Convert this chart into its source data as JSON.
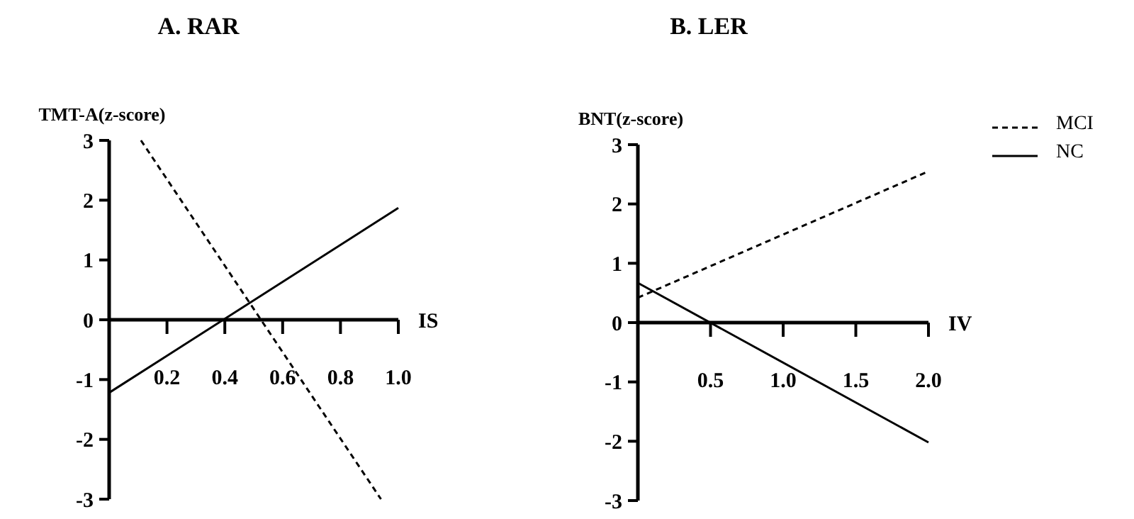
{
  "chart_data": [
    {
      "type": "line",
      "title": "A. RAR",
      "xlabel": "IS",
      "ylabel": "TMT-A(z-score)",
      "xlim": [
        0,
        1.0
      ],
      "xticks": [
        {
          "value": 0.2,
          "label": "0.2"
        },
        {
          "value": 0.4,
          "label": "0.4"
        },
        {
          "value": 0.6,
          "label": "0.6"
        },
        {
          "value": 0.8,
          "label": "0.8"
        },
        {
          "value": 1.0,
          "label": "1.0"
        }
      ],
      "ylim": [
        -3,
        3
      ],
      "yticks": [
        -3,
        -2,
        -1,
        0,
        1,
        2,
        3
      ],
      "grid": false,
      "legend": false,
      "marker": "none",
      "series": [
        {
          "color": "#000000",
          "line_style": "dashed",
          "x": [
            0.11,
            0.94
          ],
          "values": [
            3.0,
            -3.0
          ]
        },
        {
          "color": "#000000",
          "line_style": "solid",
          "x": [
            0,
            1.0
          ],
          "values": [
            -1.22,
            1.87
          ]
        }
      ]
    },
    {
      "type": "line",
      "title": "B. LER",
      "xlabel": "IV",
      "ylabel": "BNT(z-score)",
      "xlim": [
        0,
        2.0
      ],
      "xticks": [
        {
          "value": 0.5,
          "label": "0.5"
        },
        {
          "value": 1.0,
          "label": "1.0"
        },
        {
          "value": 1.5,
          "label": "1.5"
        },
        {
          "value": 2.0,
          "label": "2.0"
        }
      ],
      "ylim": [
        -3,
        3
      ],
      "yticks": [
        -3,
        -2,
        -1,
        0,
        1,
        2,
        3
      ],
      "grid": false,
      "legend": "top right",
      "marker": "none",
      "series": [
        {
          "name": "MCI",
          "color": "#000000",
          "line_style": "dashed",
          "x": [
            0,
            2.0
          ],
          "values": [
            0.42,
            2.55
          ]
        },
        {
          "name": "NC",
          "color": "#000000",
          "line_style": "solid",
          "x": [
            0,
            2.0
          ],
          "values": [
            0.67,
            -2.02
          ]
        }
      ]
    }
  ]
}
